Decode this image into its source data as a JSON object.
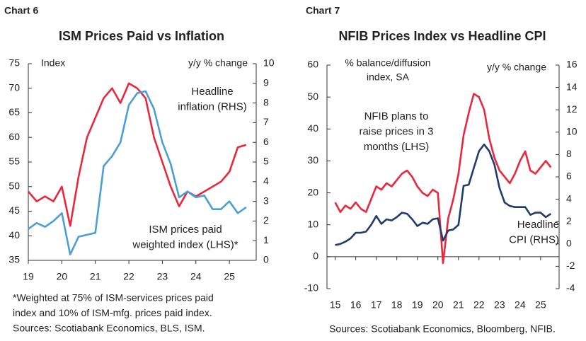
{
  "chart_data": [
    {
      "type": "line",
      "label": "Chart 6",
      "title": "ISM Prices Paid vs Inflation",
      "y_label": "Index",
      "y2_label": "y/y % change",
      "x": [
        19,
        19.25,
        19.5,
        19.75,
        20,
        20.25,
        20.5,
        20.75,
        21,
        21.25,
        21.5,
        21.75,
        22,
        22.25,
        22.5,
        22.75,
        23,
        23.25,
        23.5,
        23.75,
        24,
        24.25,
        24.5,
        24.75,
        25,
        25.25,
        25.5
      ],
      "series": [
        {
          "name": "ISM prices paid weighted index (LHS)*",
          "color": "#e8283c",
          "values": [
            49,
            47,
            48,
            47,
            50,
            42,
            52,
            60,
            64,
            68,
            70,
            67,
            71,
            70,
            68,
            60,
            55,
            50,
            46,
            49,
            48,
            49,
            50,
            51,
            53,
            58,
            58.5
          ]
        },
        {
          "name": "Headline inflation (RHS)",
          "color": "#4a9fd5",
          "axis": "y2",
          "values": [
            1.6,
            1.9,
            1.7,
            2.0,
            2.4,
            0.3,
            1.2,
            1.3,
            1.4,
            4.8,
            5.3,
            6.0,
            7.9,
            8.5,
            8.6,
            7.7,
            6.0,
            4.9,
            3.2,
            3.5,
            3.2,
            3.3,
            2.6,
            2.6,
            3.0,
            2.4,
            2.7
          ]
        }
      ],
      "annotations": [
        {
          "lines": [
            "Headline",
            "inflation (RHS)"
          ],
          "color": "#4a9fd5"
        },
        {
          "lines": [
            "ISM prices paid",
            "weighted index (LHS)*"
          ],
          "color": "#e8283c"
        }
      ],
      "xlim": [
        19,
        25.8
      ],
      "xticks": [
        19,
        20,
        21,
        22,
        23,
        24,
        25
      ],
      "ylim": [
        35,
        75
      ],
      "yticks": [
        35,
        40,
        45,
        50,
        55,
        60,
        65,
        70,
        75
      ],
      "y2lim": [
        0,
        10
      ],
      "y2ticks": [
        0,
        1,
        2,
        3,
        4,
        5,
        6,
        7,
        8,
        9,
        10
      ],
      "notes": [
        "*Weighted at 75% of ISM-services prices paid",
        "index and 10% of ISM-mfg. prices paid index.",
        "Sources: Scotiabank Economics, BLS, ISM."
      ]
    },
    {
      "type": "line",
      "label": "Chart 7",
      "title": "NFIB Prices Index vs Headline CPI",
      "y_label": [
        "% balance/diffusion",
        "index, SA"
      ],
      "y2_label": "y/y % change",
      "x": [
        15,
        15.25,
        15.5,
        15.75,
        16,
        16.25,
        16.5,
        16.75,
        17,
        17.25,
        17.5,
        17.75,
        18,
        18.25,
        18.5,
        18.75,
        19,
        19.25,
        19.5,
        19.75,
        20,
        20.25,
        20.5,
        20.75,
        21,
        21.25,
        21.5,
        21.75,
        22,
        22.25,
        22.5,
        22.75,
        23,
        23.25,
        23.5,
        23.75,
        24,
        24.25,
        24.5,
        24.75,
        25,
        25.25,
        25.5
      ],
      "series": [
        {
          "name": "NFIB plans to raise prices in 3 months (LHS)",
          "color": "#e8283c",
          "values": [
            17,
            14,
            16,
            15,
            17,
            15,
            14,
            18,
            22,
            21,
            23,
            22,
            24,
            26,
            27,
            25,
            22,
            20,
            19,
            21,
            20,
            -2,
            12,
            18,
            26,
            38,
            45,
            51,
            50,
            46,
            37,
            31,
            27,
            25,
            23,
            26,
            30,
            33,
            27,
            26,
            28,
            30,
            28
          ]
        },
        {
          "name": "Headline CPI (RHS)",
          "color": "#1f3c6e",
          "axis": "y2",
          "values": [
            -0.1,
            0,
            0.2,
            0.5,
            1.0,
            1.0,
            1.1,
            1.7,
            2.5,
            1.8,
            2.2,
            2.1,
            2.4,
            2.8,
            2.7,
            2.2,
            1.6,
            1.9,
            1.8,
            2.2,
            2.3,
            0.3,
            1.2,
            1.3,
            1.7,
            5.2,
            5.3,
            6.8,
            8.3,
            8.9,
            8.3,
            7.1,
            5.0,
            3.7,
            3.4,
            3.3,
            3.3,
            3.3,
            2.6,
            2.8,
            2.8,
            2.4,
            2.7
          ]
        }
      ],
      "annotations": [
        {
          "lines": [
            "NFIB plans to",
            "raise prices in 3",
            "months (LHS)"
          ],
          "color": "#e8283c"
        },
        {
          "lines": [
            "Headline",
            "CPI (RHS)"
          ],
          "color": "#1f3c6e"
        }
      ],
      "xlim": [
        14.6,
        25.9
      ],
      "xticks": [
        15,
        16,
        17,
        18,
        19,
        20,
        21,
        22,
        23,
        24,
        25
      ],
      "ylim": [
        -10,
        60
      ],
      "yticks": [
        -10,
        0,
        10,
        20,
        30,
        40,
        50,
        60
      ],
      "y2lim": [
        -4,
        16
      ],
      "y2ticks": [
        -4,
        -2,
        0,
        2,
        4,
        6,
        8,
        10,
        12,
        14,
        16
      ],
      "notes": [
        "Sources: Scotiabank Economics, Bloomberg, NFIB."
      ]
    }
  ]
}
